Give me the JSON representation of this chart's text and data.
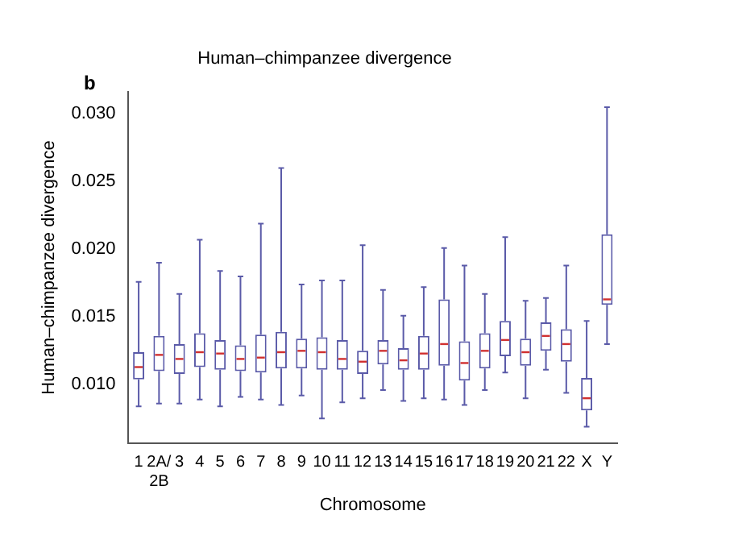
{
  "chart_data": {
    "type": "box",
    "title": "Human–chimpanzee divergence",
    "xlabel": "Chromosome",
    "ylabel": "Human–chimpanzee divergence",
    "annotations": [
      "b"
    ],
    "categories": [
      "1",
      "2A/2B",
      "3",
      "4",
      "5",
      "6",
      "7",
      "8",
      "9",
      "10",
      "11",
      "12",
      "13",
      "14",
      "15",
      "16",
      "17",
      "18",
      "19",
      "20",
      "21",
      "22",
      "X",
      "Y"
    ],
    "ylim": [
      0.0057,
      0.0316
    ],
    "yticks": [
      {
        "value": 0.01,
        "label": "0.010"
      },
      {
        "value": 0.015,
        "label": "0.015"
      },
      {
        "value": 0.02,
        "label": "0.020"
      },
      {
        "value": 0.025,
        "label": "0.025"
      },
      {
        "value": 0.03,
        "label": "0.030"
      }
    ],
    "grid": false,
    "legend": false,
    "series": [
      {
        "color": "#5a5aa8",
        "boxes": [
          {
            "low": 0.0084,
            "q1": 0.0104,
            "median": 0.0113,
            "q3": 0.0124,
            "high": 0.0176
          },
          {
            "low": 0.0086,
            "q1": 0.011,
            "median": 0.0122,
            "q3": 0.0136,
            "high": 0.019
          },
          {
            "low": 0.0086,
            "q1": 0.0108,
            "median": 0.0119,
            "q3": 0.013,
            "high": 0.0167
          },
          {
            "low": 0.0089,
            "q1": 0.0113,
            "median": 0.0124,
            "q3": 0.0138,
            "high": 0.0207
          },
          {
            "low": 0.0084,
            "q1": 0.0111,
            "median": 0.0123,
            "q3": 0.0133,
            "high": 0.0184
          },
          {
            "low": 0.0091,
            "q1": 0.011,
            "median": 0.0119,
            "q3": 0.0129,
            "high": 0.018
          },
          {
            "low": 0.0089,
            "q1": 0.0109,
            "median": 0.012,
            "q3": 0.0137,
            "high": 0.0219
          },
          {
            "low": 0.0085,
            "q1": 0.0112,
            "median": 0.0124,
            "q3": 0.0139,
            "high": 0.026
          },
          {
            "low": 0.0092,
            "q1": 0.0112,
            "median": 0.0125,
            "q3": 0.0134,
            "high": 0.0174
          },
          {
            "low": 0.0075,
            "q1": 0.0111,
            "median": 0.0124,
            "q3": 0.0135,
            "high": 0.0177
          },
          {
            "low": 0.0087,
            "q1": 0.0111,
            "median": 0.0119,
            "q3": 0.0133,
            "high": 0.0177
          },
          {
            "low": 0.009,
            "q1": 0.0108,
            "median": 0.0117,
            "q3": 0.0125,
            "high": 0.0203
          },
          {
            "low": 0.0096,
            "q1": 0.0115,
            "median": 0.0125,
            "q3": 0.0133,
            "high": 0.017
          },
          {
            "low": 0.0088,
            "q1": 0.0111,
            "median": 0.0118,
            "q3": 0.0127,
            "high": 0.0151
          },
          {
            "low": 0.009,
            "q1": 0.0111,
            "median": 0.0123,
            "q3": 0.0136,
            "high": 0.0172
          },
          {
            "low": 0.0089,
            "q1": 0.0114,
            "median": 0.013,
            "q3": 0.0163,
            "high": 0.0201
          },
          {
            "low": 0.0085,
            "q1": 0.0103,
            "median": 0.0116,
            "q3": 0.0132,
            "high": 0.0188
          },
          {
            "low": 0.0096,
            "q1": 0.0112,
            "median": 0.0125,
            "q3": 0.0138,
            "high": 0.0167
          },
          {
            "low": 0.0109,
            "q1": 0.0121,
            "median": 0.0133,
            "q3": 0.0147,
            "high": 0.0209
          },
          {
            "low": 0.009,
            "q1": 0.0114,
            "median": 0.0124,
            "q3": 0.0134,
            "high": 0.0162
          },
          {
            "low": 0.0111,
            "q1": 0.0125,
            "median": 0.0136,
            "q3": 0.0146,
            "high": 0.0164
          },
          {
            "low": 0.0094,
            "q1": 0.0117,
            "median": 0.013,
            "q3": 0.0141,
            "high": 0.0188
          },
          {
            "low": 0.0069,
            "q1": 0.0081,
            "median": 0.009,
            "q3": 0.0105,
            "high": 0.0147
          },
          {
            "low": 0.013,
            "q1": 0.0159,
            "median": 0.0163,
            "q3": 0.0211,
            "high": 0.0305
          }
        ]
      }
    ]
  }
}
